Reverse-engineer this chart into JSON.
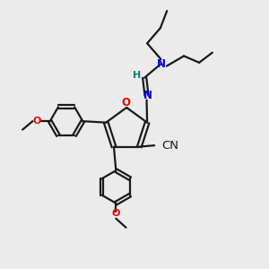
{
  "bg_color": "#ebebeb",
  "bond_color": "#1a1a1a",
  "bond_width": 1.6,
  "atom_colors": {
    "N": "#0000ee",
    "O": "#ee0000",
    "H": "#008080",
    "CN_label": "#1a1a1a"
  },
  "font_size_atom": 8.5,
  "font_size_cn": 9.5,
  "font_size_ome": 8.0
}
